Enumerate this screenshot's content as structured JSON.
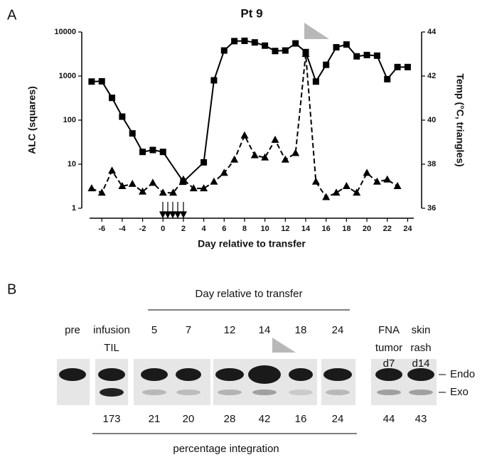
{
  "chart_data": {
    "type": "line",
    "panel_label": "A",
    "title": "Pt 9",
    "x_label": "Day relative to transfer",
    "y_label": "ALC (squares)",
    "y2_label": "Temp (°C, triangles)",
    "xlim": [
      -7.2,
      24.6
    ],
    "xticks": [
      -6,
      -4,
      -2,
      0,
      2,
      4,
      6,
      8,
      10,
      12,
      14,
      16,
      18,
      20,
      22,
      24
    ],
    "ylim": [
      1,
      10000
    ],
    "yticks": [
      1,
      10,
      100,
      1000,
      10000
    ],
    "ylog": true,
    "y2lim": [
      36,
      44
    ],
    "y2ticks": [
      36,
      38,
      40,
      42,
      44
    ],
    "series": [
      {
        "name": "ALC",
        "color": "#000000",
        "marker": "square",
        "dash": false,
        "x": [
          -7,
          -6,
          -5,
          -4,
          -3,
          -2,
          -1,
          0,
          2,
          4,
          5,
          6,
          7,
          8,
          9,
          10,
          11,
          12,
          13,
          14,
          15,
          16,
          17,
          18,
          19,
          20,
          21,
          22,
          23,
          24
        ],
        "values": [
          750,
          760,
          320,
          120,
          50,
          19,
          21,
          19,
          4,
          11,
          800,
          3800,
          6200,
          6300,
          5800,
          4900,
          3700,
          3800,
          5500,
          3500,
          750,
          1800,
          4500,
          5200,
          2800,
          3000,
          2900,
          850,
          1600,
          1600
        ]
      },
      {
        "name": "Temp",
        "color": "#000000",
        "marker": "triangle",
        "dash": true,
        "axis": "y2",
        "x": [
          -7,
          -6,
          -5,
          -4,
          -3,
          -2,
          -1,
          0,
          1,
          2,
          3,
          4,
          5,
          6,
          7,
          8,
          9,
          10,
          11,
          12,
          13,
          14,
          15,
          16,
          17,
          18,
          19,
          20,
          21,
          22,
          23
        ],
        "values": [
          36.9,
          36.7,
          37.7,
          37.0,
          37.1,
          36.75,
          37.15,
          36.7,
          36.7,
          37.3,
          36.9,
          36.9,
          37.2,
          37.6,
          38.2,
          39.3,
          38.4,
          38.3,
          39.1,
          38.2,
          38.5,
          43.0,
          37.2,
          36.5,
          36.7,
          37.0,
          36.7,
          37.6,
          37.2,
          37.3,
          37.0
        ]
      }
    ]
  },
  "panel_b": {
    "panel_label": "B",
    "header": "Day relative to transfer",
    "footer": "percentage integration",
    "band_labels": [
      "Endo",
      "Exo"
    ],
    "lanes": [
      {
        "label_lines": [
          "pre"
        ]
      },
      {
        "label_lines": [
          "infusion",
          "TIL"
        ],
        "percent": 173
      },
      {
        "label_lines": [
          "5"
        ],
        "percent": 21
      },
      {
        "label_lines": [
          "7"
        ],
        "percent": 20
      },
      {
        "label_lines": [
          "12"
        ],
        "percent": 28
      },
      {
        "label_lines": [
          "14"
        ],
        "percent": 42
      },
      {
        "label_lines": [
          "18"
        ],
        "percent": 16
      },
      {
        "label_lines": [
          "24"
        ],
        "percent": 24
      },
      {
        "label_lines": [
          "FNA",
          "tumor",
          "d7"
        ],
        "percent": 44
      },
      {
        "label_lines": [
          "skin",
          "rash",
          "d14"
        ],
        "percent": 43
      }
    ]
  }
}
